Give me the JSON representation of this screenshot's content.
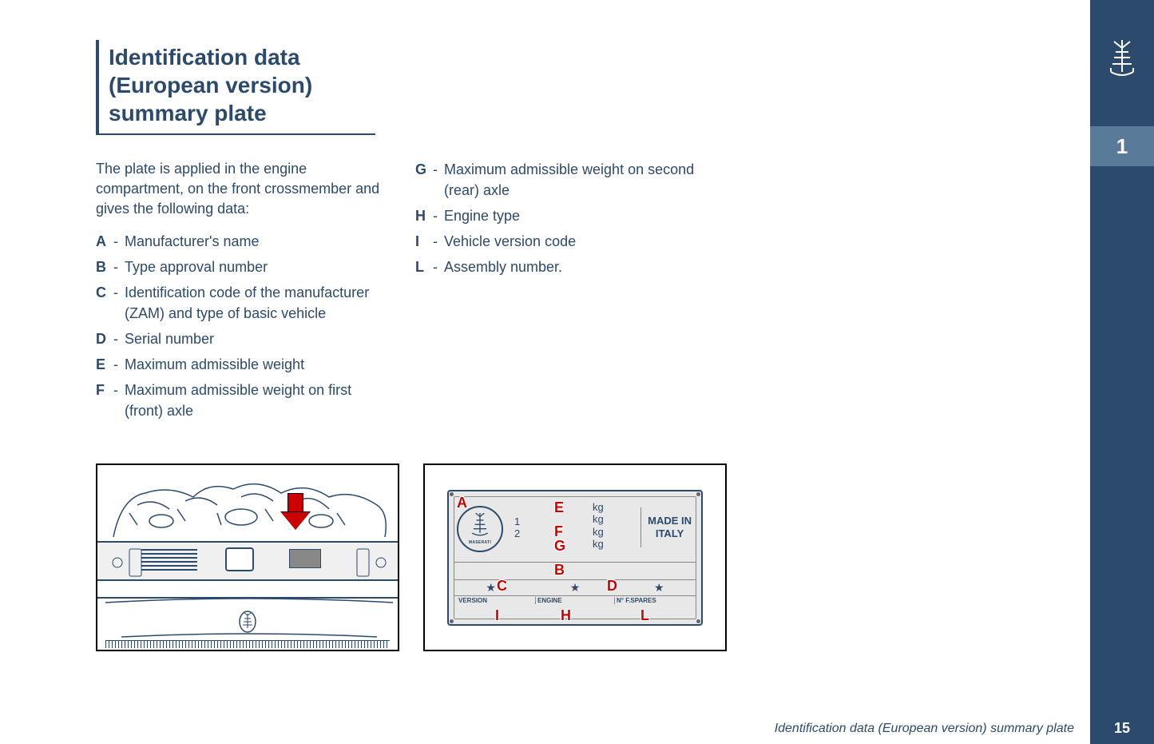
{
  "chapter_number": "1",
  "page_number": "15",
  "footer_title": "Identification data (European version) summary plate",
  "title_line1": "Identification data",
  "title_line2": "(European version)",
  "title_line3": "summary plate",
  "intro_text": "The plate is applied in the engine compartment, on the front crossmember and gives the following data:",
  "items_col1": [
    {
      "letter": "A",
      "desc": "Manufacturer's name"
    },
    {
      "letter": "B",
      "desc": "Type approval number"
    },
    {
      "letter": "C",
      "desc": "Identification code of the manufacturer (ZAM) and type of basic vehicle"
    },
    {
      "letter": "D",
      "desc": "Serial number"
    },
    {
      "letter": "E",
      "desc": "Maximum admissible weight"
    },
    {
      "letter": "F",
      "desc": "Maximum admissible weight on first (front) axle"
    }
  ],
  "items_col2": [
    {
      "letter": "G",
      "desc": "Maximum admissible weight on second (rear) axle"
    },
    {
      "letter": "H",
      "desc": "Engine type"
    },
    {
      "letter": "I",
      "desc": "Vehicle version code"
    },
    {
      "letter": "L",
      "desc": "Assembly number."
    }
  ],
  "plate": {
    "brand": "MASERATI",
    "axle1": "1",
    "axle2": "2",
    "unit": "kg",
    "made_in": "MADE IN",
    "country": "ITALY",
    "star": "★",
    "bottom_version": "VERSION",
    "bottom_engine": "ENGINE",
    "bottom_spares": "N° F.SPARES",
    "labels": {
      "A": "A",
      "B": "B",
      "C": "C",
      "D": "D",
      "E": "E",
      "F": "F",
      "G": "G",
      "H": "H",
      "I": "I",
      "L": "L"
    }
  },
  "colors": {
    "primary": "#2c4a6b",
    "tab": "#5a7a9a",
    "red": "#cc0000",
    "plate_bg": "#e8e8e8"
  }
}
